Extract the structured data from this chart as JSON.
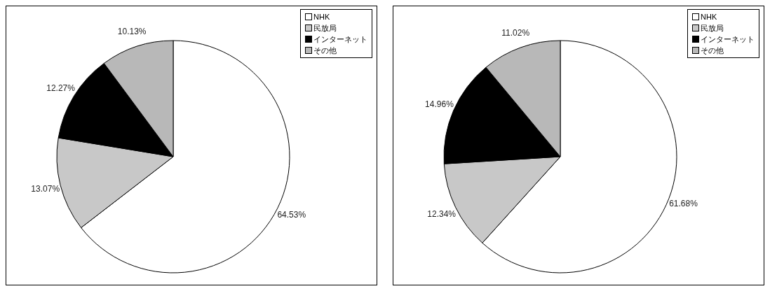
{
  "chart_data": [
    {
      "type": "pie",
      "categories": [
        "NHK",
        "民放局",
        "インターネット",
        "その他"
      ],
      "values": [
        64.53,
        13.07,
        12.27,
        10.13
      ],
      "colors": [
        "#ffffff",
        "#c8c8c8",
        "#000000",
        "#b8b8b8"
      ],
      "value_labels": [
        "64.53%",
        "13.07%",
        "12.27%",
        "10.13%"
      ],
      "legend": "top right"
    },
    {
      "type": "pie",
      "categories": [
        "NHK",
        "民放局",
        "インターネット",
        "その他"
      ],
      "values": [
        61.68,
        12.34,
        14.96,
        11.02
      ],
      "colors": [
        "#ffffff",
        "#c8c8c8",
        "#000000",
        "#b8b8b8"
      ],
      "value_labels": [
        "61.68%",
        "12.34%",
        "14.96%",
        "11.02%"
      ],
      "legend": "top right"
    }
  ]
}
